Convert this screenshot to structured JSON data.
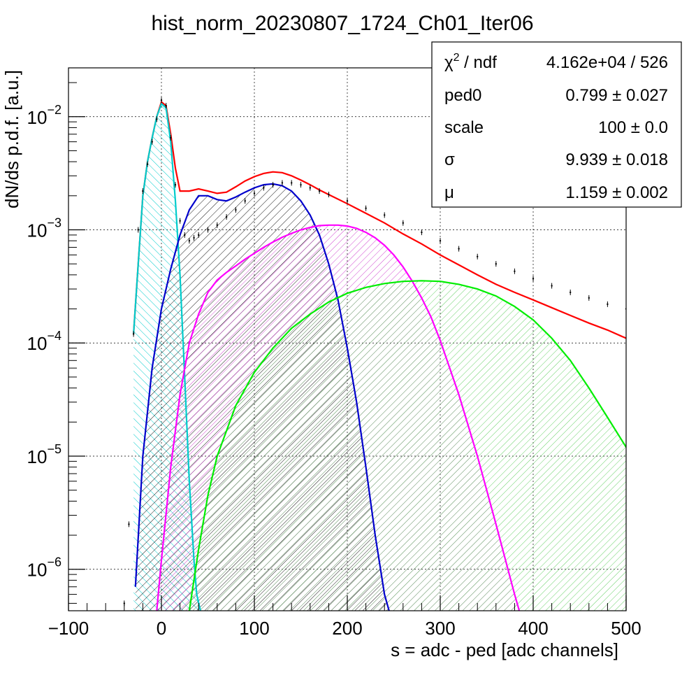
{
  "chart_data": {
    "type": "line",
    "title": "hist_norm_20230807_1724_Ch01_Iter06",
    "xlabel": "s = adc - ped [adc channels]",
    "ylabel": "dN/ds p.d.f. [a.u.]",
    "xlim": [
      -100,
      500
    ],
    "ylim": [
      4.3e-07,
      0.027
    ],
    "y_scale": "log",
    "grid": true,
    "x_ticks": [
      {
        "value": -100,
        "label": "−100"
      },
      {
        "value": 0,
        "label": "0"
      },
      {
        "value": 100,
        "label": "100"
      },
      {
        "value": 200,
        "label": "200"
      },
      {
        "value": 300,
        "label": "300"
      },
      {
        "value": 400,
        "label": "400"
      },
      {
        "value": 500,
        "label": "500"
      }
    ],
    "y_ticks": [
      {
        "value": 1e-06,
        "base": "10",
        "exp": "−6"
      },
      {
        "value": 1e-05,
        "base": "10",
        "exp": "−5"
      },
      {
        "value": 0.0001,
        "base": "10",
        "exp": "−4"
      },
      {
        "value": 0.001,
        "base": "10",
        "exp": "−3"
      },
      {
        "value": 0.01,
        "base": "10",
        "exp": "−2"
      }
    ],
    "stats_box": {
      "rows": [
        {
          "name_base": "χ",
          "name_sup": "2",
          "name_rest": " / ndf",
          "value": "4.162e+04 / 526"
        },
        {
          "name_base": "ped0",
          "name_sup": "",
          "name_rest": "",
          "value": "0.799 ± 0.027"
        },
        {
          "name_base": "scale",
          "name_sup": "",
          "name_rest": "",
          "value": "100 ± 0.0"
        },
        {
          "name_base": "σ",
          "name_sup": "",
          "name_rest": "",
          "value": "9.939 ± 0.018"
        },
        {
          "name_base": "μ",
          "name_sup": "",
          "name_rest": "",
          "value": "1.159 ± 0.002"
        }
      ]
    },
    "data_histogram": {
      "color": "#000000",
      "points": [
        [
          -40,
          5e-07
        ],
        [
          -35,
          2.5e-06
        ],
        [
          -30,
          0.00012
        ],
        [
          -25,
          0.001
        ],
        [
          -20,
          0.0022
        ],
        [
          -15,
          0.0038
        ],
        [
          -10,
          0.006
        ],
        [
          -5,
          0.0095
        ],
        [
          0,
          0.014
        ],
        [
          5,
          0.0125
        ],
        [
          10,
          0.0065
        ],
        [
          15,
          0.0025
        ],
        [
          20,
          0.0012
        ],
        [
          25,
          0.0009
        ],
        [
          30,
          0.0008
        ],
        [
          35,
          0.00085
        ],
        [
          40,
          0.0009
        ],
        [
          50,
          0.001
        ],
        [
          60,
          0.0011
        ],
        [
          70,
          0.0013
        ],
        [
          80,
          0.0015
        ],
        [
          90,
          0.0018
        ],
        [
          100,
          0.0021
        ],
        [
          110,
          0.00235
        ],
        [
          120,
          0.0025
        ],
        [
          130,
          0.0026
        ],
        [
          140,
          0.0026
        ],
        [
          150,
          0.0025
        ],
        [
          160,
          0.00235
        ],
        [
          170,
          0.0022
        ],
        [
          180,
          0.00205
        ],
        [
          200,
          0.0018
        ],
        [
          220,
          0.00155
        ],
        [
          240,
          0.00135
        ],
        [
          260,
          0.00115
        ],
        [
          280,
          0.00095
        ],
        [
          300,
          0.0008
        ],
        [
          320,
          0.00068
        ],
        [
          340,
          0.00058
        ],
        [
          360,
          0.0005
        ],
        [
          380,
          0.00043
        ],
        [
          400,
          0.00037
        ],
        [
          420,
          0.00032
        ],
        [
          440,
          0.00028
        ],
        [
          460,
          0.00025
        ],
        [
          480,
          0.00022
        ],
        [
          500,
          0.0002
        ]
      ]
    },
    "series": [
      {
        "color": "#ff0000",
        "hatch": false,
        "points": [
          [
            -30,
            0.00012
          ],
          [
            -25,
            0.0005
          ],
          [
            -20,
            0.002
          ],
          [
            -15,
            0.004
          ],
          [
            -10,
            0.0065
          ],
          [
            -5,
            0.01
          ],
          [
            0,
            0.0135
          ],
          [
            5,
            0.0125
          ],
          [
            10,
            0.007
          ],
          [
            15,
            0.0035
          ],
          [
            20,
            0.0022
          ],
          [
            30,
            0.0022
          ],
          [
            40,
            0.0023
          ],
          [
            50,
            0.0022
          ],
          [
            60,
            0.0021
          ],
          [
            70,
            0.00215
          ],
          [
            80,
            0.0024
          ],
          [
            90,
            0.0027
          ],
          [
            100,
            0.00295
          ],
          [
            110,
            0.00315
          ],
          [
            120,
            0.00325
          ],
          [
            130,
            0.0032
          ],
          [
            140,
            0.003
          ],
          [
            150,
            0.00275
          ],
          [
            160,
            0.0025
          ],
          [
            170,
            0.00225
          ],
          [
            180,
            0.00205
          ],
          [
            200,
            0.0017
          ],
          [
            220,
            0.0014
          ],
          [
            240,
            0.00115
          ],
          [
            260,
            0.00092
          ],
          [
            280,
            0.00075
          ],
          [
            300,
            0.0006
          ],
          [
            320,
            0.00049
          ],
          [
            340,
            0.0004
          ],
          [
            360,
            0.00033
          ],
          [
            380,
            0.00028
          ],
          [
            400,
            0.00024
          ],
          [
            420,
            0.000205
          ],
          [
            440,
            0.000175
          ],
          [
            460,
            0.00015
          ],
          [
            480,
            0.00013
          ],
          [
            500,
            0.00011
          ]
        ]
      },
      {
        "color": "#00cccc",
        "hatch": true,
        "points": [
          [
            -30,
            0.00012
          ],
          [
            -25,
            0.0005
          ],
          [
            -20,
            0.002
          ],
          [
            -15,
            0.004
          ],
          [
            -10,
            0.0065
          ],
          [
            -5,
            0.01
          ],
          [
            0,
            0.013
          ],
          [
            5,
            0.012
          ],
          [
            10,
            0.006
          ],
          [
            15,
            0.0018
          ],
          [
            20,
            0.0004
          ],
          [
            25,
            5e-05
          ],
          [
            30,
            6e-06
          ],
          [
            35,
            1.2e-06
          ],
          [
            38,
            6e-07
          ],
          [
            42,
            4.3e-07
          ]
        ]
      },
      {
        "color": "#0000cc",
        "hatch": true,
        "points": [
          [
            -28,
            7e-07
          ],
          [
            -20,
            1e-05
          ],
          [
            -10,
            6e-05
          ],
          [
            0,
            0.0002
          ],
          [
            10,
            0.00045
          ],
          [
            20,
            0.0009
          ],
          [
            30,
            0.0015
          ],
          [
            40,
            0.002
          ],
          [
            50,
            0.002
          ],
          [
            60,
            0.00185
          ],
          [
            70,
            0.0018
          ],
          [
            80,
            0.00195
          ],
          [
            90,
            0.00215
          ],
          [
            100,
            0.00235
          ],
          [
            110,
            0.0025
          ],
          [
            120,
            0.00255
          ],
          [
            130,
            0.00245
          ],
          [
            140,
            0.0022
          ],
          [
            150,
            0.0018
          ],
          [
            160,
            0.00135
          ],
          [
            170,
            0.0009
          ],
          [
            180,
            0.0005
          ],
          [
            190,
            0.00024
          ],
          [
            200,
            9e-05
          ],
          [
            210,
            3e-05
          ],
          [
            220,
            8e-06
          ],
          [
            230,
            2e-06
          ],
          [
            240,
            6e-07
          ],
          [
            245,
            4.3e-07
          ]
        ]
      },
      {
        "color": "#ff00ff",
        "hatch": true,
        "points": [
          [
            -5,
            4.3e-07
          ],
          [
            0,
            1.2e-06
          ],
          [
            10,
            8e-06
          ],
          [
            20,
            3.5e-05
          ],
          [
            30,
            0.0001
          ],
          [
            40,
            0.00018
          ],
          [
            50,
            0.00028
          ],
          [
            60,
            0.00036
          ],
          [
            70,
            0.00042
          ],
          [
            80,
            0.00048
          ],
          [
            90,
            0.00055
          ],
          [
            100,
            0.00062
          ],
          [
            110,
            0.0007
          ],
          [
            120,
            0.00078
          ],
          [
            130,
            0.00086
          ],
          [
            140,
            0.00093
          ],
          [
            150,
            0.001
          ],
          [
            160,
            0.00105
          ],
          [
            170,
            0.00109
          ],
          [
            180,
            0.0011
          ],
          [
            190,
            0.0011
          ],
          [
            200,
            0.00108
          ],
          [
            210,
            0.00103
          ],
          [
            220,
            0.00095
          ],
          [
            230,
            0.00085
          ],
          [
            240,
            0.00073
          ],
          [
            250,
            0.0006
          ],
          [
            260,
            0.00047
          ],
          [
            270,
            0.00035
          ],
          [
            280,
            0.00025
          ],
          [
            290,
            0.00017
          ],
          [
            300,
            0.000105
          ],
          [
            320,
            3.5e-05
          ],
          [
            340,
            1e-05
          ],
          [
            360,
            2.5e-06
          ],
          [
            380,
            6e-07
          ],
          [
            385,
            4.3e-07
          ]
        ]
      },
      {
        "color": "#00ee00",
        "hatch": true,
        "points": [
          [
            30,
            4.3e-07
          ],
          [
            40,
            1.5e-06
          ],
          [
            50,
            4.5e-06
          ],
          [
            60,
            1e-05
          ],
          [
            80,
            2.8e-05
          ],
          [
            100,
            5.5e-05
          ],
          [
            120,
            9e-05
          ],
          [
            140,
            0.000135
          ],
          [
            160,
            0.00018
          ],
          [
            180,
            0.00023
          ],
          [
            200,
            0.000275
          ],
          [
            220,
            0.00031
          ],
          [
            240,
            0.000335
          ],
          [
            260,
            0.00035
          ],
          [
            280,
            0.000355
          ],
          [
            300,
            0.00035
          ],
          [
            320,
            0.00033
          ],
          [
            340,
            0.0003
          ],
          [
            360,
            0.00026
          ],
          [
            380,
            0.00021
          ],
          [
            400,
            0.00016
          ],
          [
            420,
            0.00011
          ],
          [
            440,
            7e-05
          ],
          [
            460,
            4e-05
          ],
          [
            480,
            2.2e-05
          ],
          [
            500,
            1.2e-05
          ]
        ]
      }
    ]
  }
}
